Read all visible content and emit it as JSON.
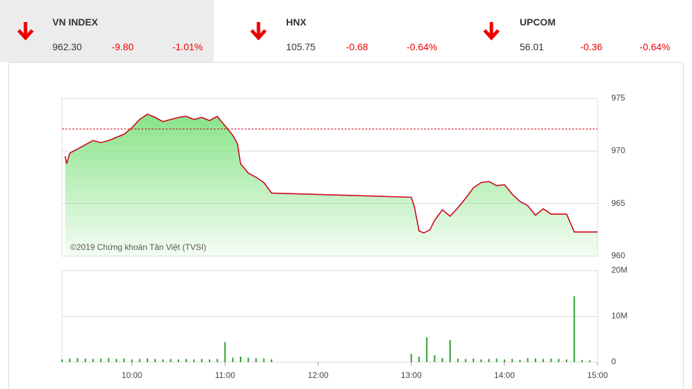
{
  "indices": [
    {
      "name": "VN INDEX",
      "value": "962.30",
      "change": "-9.80",
      "percent": "-1.01%"
    },
    {
      "name": "HNX",
      "value": "105.75",
      "change": "-0.68",
      "percent": "-0.64%"
    },
    {
      "name": "UPCOM",
      "value": "56.01",
      "change": "-0.36",
      "percent": "-0.64%"
    }
  ],
  "chart_data": [
    {
      "type": "area",
      "watermark": "©2019 Chứng khoán Tân Việt (TVSI)",
      "color": "#d0021b",
      "fill": "#7be07b",
      "reference": 972.1,
      "reference_color": "#d0021b",
      "xlim": [
        "09:15",
        "15:00"
      ],
      "x": [
        "09:17",
        "09:18",
        "09:20",
        "09:25",
        "09:30",
        "09:35",
        "09:40",
        "09:45",
        "09:50",
        "09:55",
        "10:00",
        "10:05",
        "10:10",
        "10:15",
        "10:20",
        "10:25",
        "10:30",
        "10:35",
        "10:40",
        "10:45",
        "10:50",
        "10:55",
        "11:00",
        "11:05",
        "11:08",
        "11:10",
        "11:15",
        "11:20",
        "11:25",
        "11:30",
        "13:00",
        "13:02",
        "13:05",
        "13:08",
        "13:12",
        "13:15",
        "13:20",
        "13:25",
        "13:30",
        "13:35",
        "13:40",
        "13:45",
        "13:50",
        "13:55",
        "14:00",
        "14:05",
        "14:10",
        "14:15",
        "14:20",
        "14:25",
        "14:30",
        "14:35",
        "14:40",
        "14:45",
        "15:00"
      ],
      "values": [
        969.5,
        968.8,
        969.8,
        970.2,
        970.6,
        971.0,
        970.8,
        971.0,
        971.3,
        971.6,
        972.2,
        973.0,
        973.5,
        973.2,
        972.8,
        973.0,
        973.2,
        973.3,
        973.0,
        973.2,
        972.9,
        973.3,
        972.4,
        971.5,
        970.7,
        968.8,
        967.9,
        967.5,
        967.0,
        966.0,
        965.6,
        964.7,
        962.4,
        962.2,
        962.5,
        963.4,
        964.4,
        963.8,
        964.6,
        965.5,
        966.5,
        967.0,
        967.1,
        966.7,
        966.8,
        965.9,
        965.2,
        964.8,
        963.9,
        964.5,
        964.0,
        964.0,
        964.0,
        962.3,
        962.3
      ],
      "ylim": [
        960,
        975
      ],
      "yticks": [
        960,
        965,
        970,
        975
      ],
      "grid": true
    },
    {
      "type": "bar",
      "color": "#2e9e2e",
      "xlim": [
        "09:15",
        "15:00"
      ],
      "x": [
        "09:15",
        "09:20",
        "09:25",
        "09:30",
        "09:35",
        "09:40",
        "09:45",
        "09:50",
        "09:55",
        "10:00",
        "10:05",
        "10:10",
        "10:15",
        "10:20",
        "10:25",
        "10:30",
        "10:35",
        "10:40",
        "10:45",
        "10:50",
        "10:55",
        "11:00",
        "11:05",
        "11:10",
        "11:15",
        "11:20",
        "11:25",
        "11:30",
        "13:00",
        "13:05",
        "13:10",
        "13:15",
        "13:20",
        "13:25",
        "13:30",
        "13:35",
        "13:40",
        "13:45",
        "13:50",
        "13:55",
        "14:00",
        "14:05",
        "14:10",
        "14:15",
        "14:20",
        "14:25",
        "14:30",
        "14:35",
        "14:40",
        "14:45",
        "14:50",
        "14:55"
      ],
      "values": [
        0.6,
        0.8,
        0.9,
        0.8,
        0.7,
        0.8,
        0.9,
        0.7,
        0.8,
        0.6,
        0.7,
        0.8,
        0.7,
        0.6,
        0.7,
        0.6,
        0.7,
        0.6,
        0.7,
        0.6,
        0.7,
        4.4,
        1.0,
        1.2,
        1.0,
        0.9,
        0.8,
        0.6,
        1.8,
        1.2,
        5.4,
        1.5,
        0.9,
        4.8,
        0.8,
        0.7,
        0.8,
        0.6,
        0.7,
        0.8,
        0.6,
        0.7,
        0.5,
        0.9,
        0.8,
        0.7,
        0.8,
        0.7,
        0.6,
        14.4,
        0.5,
        0.4
      ],
      "ylim": [
        0,
        20
      ],
      "yticks": [
        0,
        {
          "value": 10,
          "label": "10M"
        },
        {
          "value": 20,
          "label": "20M"
        }
      ],
      "xticks": [
        "10:00",
        "11:00",
        "12:00",
        "13:00",
        "14:00",
        "15:00"
      ],
      "grid": true
    }
  ]
}
